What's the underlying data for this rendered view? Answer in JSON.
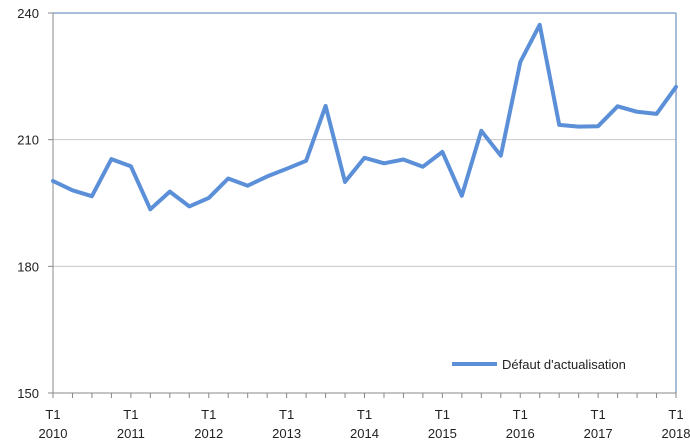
{
  "chart_data": {
    "type": "line",
    "title": "",
    "xlabel": "",
    "ylabel": "",
    "ylim": [
      150,
      240
    ],
    "yticks": [
      150,
      180,
      210,
      240
    ],
    "grid": true,
    "legend_position": "bottom-right",
    "x_tick_labels": [
      {
        "quarter": "T1",
        "year": "2010"
      },
      {
        "quarter": "T1",
        "year": "2011"
      },
      {
        "quarter": "T1",
        "year": "2012"
      },
      {
        "quarter": "T1",
        "year": "2013"
      },
      {
        "quarter": "T1",
        "year": "2014"
      },
      {
        "quarter": "T1",
        "year": "2015"
      },
      {
        "quarter": "T1",
        "year": "2016"
      },
      {
        "quarter": "T1",
        "year": "2017"
      },
      {
        "quarter": "T1",
        "year": "2018"
      }
    ],
    "x": [
      "2010T1",
      "2010T2",
      "2010T3",
      "2010T4",
      "2011T1",
      "2011T2",
      "2011T3",
      "2011T4",
      "2012T1",
      "2012T2",
      "2012T3",
      "2012T4",
      "2013T1",
      "2013T2",
      "2013T3",
      "2013T4",
      "2014T1",
      "2014T2",
      "2014T3",
      "2014T4",
      "2015T1",
      "2015T2",
      "2015T3",
      "2015T4",
      "2016T1",
      "2016T2",
      "2016T3",
      "2016T4",
      "2017T1",
      "2017T2",
      "2017T3",
      "2017T4",
      "2018T1"
    ],
    "series": [
      {
        "name": "Défaut d'actualisation",
        "color": "#5b8fd8",
        "values": [
          200.2,
          198.0,
          196.6,
          205.4,
          203.7,
          193.5,
          197.7,
          194.2,
          196.2,
          200.8,
          199.1,
          201.3,
          203.1,
          205.0,
          218.0,
          200.0,
          205.7,
          204.4,
          205.3,
          203.6,
          207.1,
          196.7,
          212.1,
          206.2,
          228.4,
          237.2,
          213.5,
          213.1,
          213.2,
          217.9,
          216.6,
          216.1,
          222.5
        ]
      }
    ],
    "colors": {
      "grid": "#c8c8c8",
      "axis": "#888888",
      "frame": "#8aa6c8"
    }
  }
}
